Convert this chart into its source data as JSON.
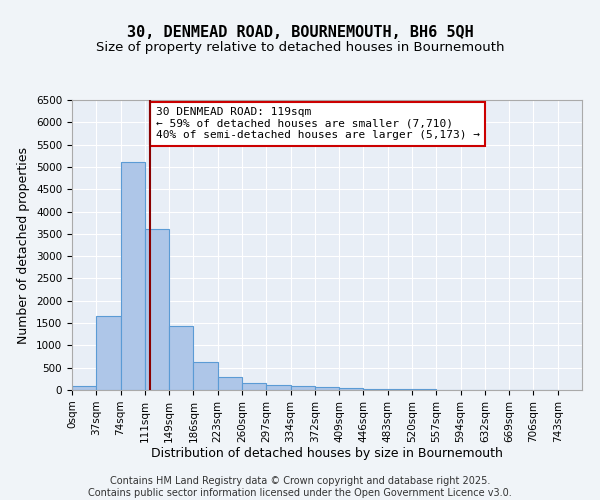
{
  "title_line1": "30, DENMEAD ROAD, BOURNEMOUTH, BH6 5QH",
  "title_line2": "Size of property relative to detached houses in Bournemouth",
  "xlabel": "Distribution of detached houses by size in Bournemouth",
  "ylabel": "Number of detached properties",
  "bin_edges": [
    0,
    37,
    74,
    111,
    148,
    185,
    222,
    259,
    296,
    333,
    370,
    407,
    444,
    481,
    518,
    555,
    592,
    629,
    666,
    703,
    740
  ],
  "bar_heights": [
    100,
    1650,
    5100,
    3600,
    1430,
    620,
    300,
    150,
    120,
    100,
    60,
    40,
    30,
    20,
    15,
    10,
    8,
    5,
    3,
    2
  ],
  "bar_color": "#aec6e8",
  "bar_edge_color": "#5b9bd5",
  "property_size": 119,
  "vline_color": "#8b0000",
  "annotation_text": "30 DENMEAD ROAD: 119sqm\n← 59% of detached houses are smaller (7,710)\n40% of semi-detached houses are larger (5,173) →",
  "annotation_box_color": "#ffffff",
  "annotation_box_edge_color": "#cc0000",
  "ylim": [
    0,
    6500
  ],
  "yticks": [
    0,
    500,
    1000,
    1500,
    2000,
    2500,
    3000,
    3500,
    4000,
    4500,
    5000,
    5500,
    6000,
    6500
  ],
  "xtick_labels": [
    "0sqm",
    "37sqm",
    "74sqm",
    "111sqm",
    "149sqm",
    "186sqm",
    "223sqm",
    "260sqm",
    "297sqm",
    "334sqm",
    "372sqm",
    "409sqm",
    "446sqm",
    "483sqm",
    "520sqm",
    "557sqm",
    "594sqm",
    "632sqm",
    "669sqm",
    "706sqm",
    "743sqm"
  ],
  "footer_text": "Contains HM Land Registry data © Crown copyright and database right 2025.\nContains public sector information licensed under the Open Government Licence v3.0.",
  "bg_color": "#e8eef6",
  "grid_color": "#ffffff",
  "fig_bg_color": "#f0f4f8",
  "title_fontsize": 11,
  "subtitle_fontsize": 9.5,
  "axis_label_fontsize": 9,
  "tick_fontsize": 7.5,
  "annotation_fontsize": 8,
  "footer_fontsize": 7
}
